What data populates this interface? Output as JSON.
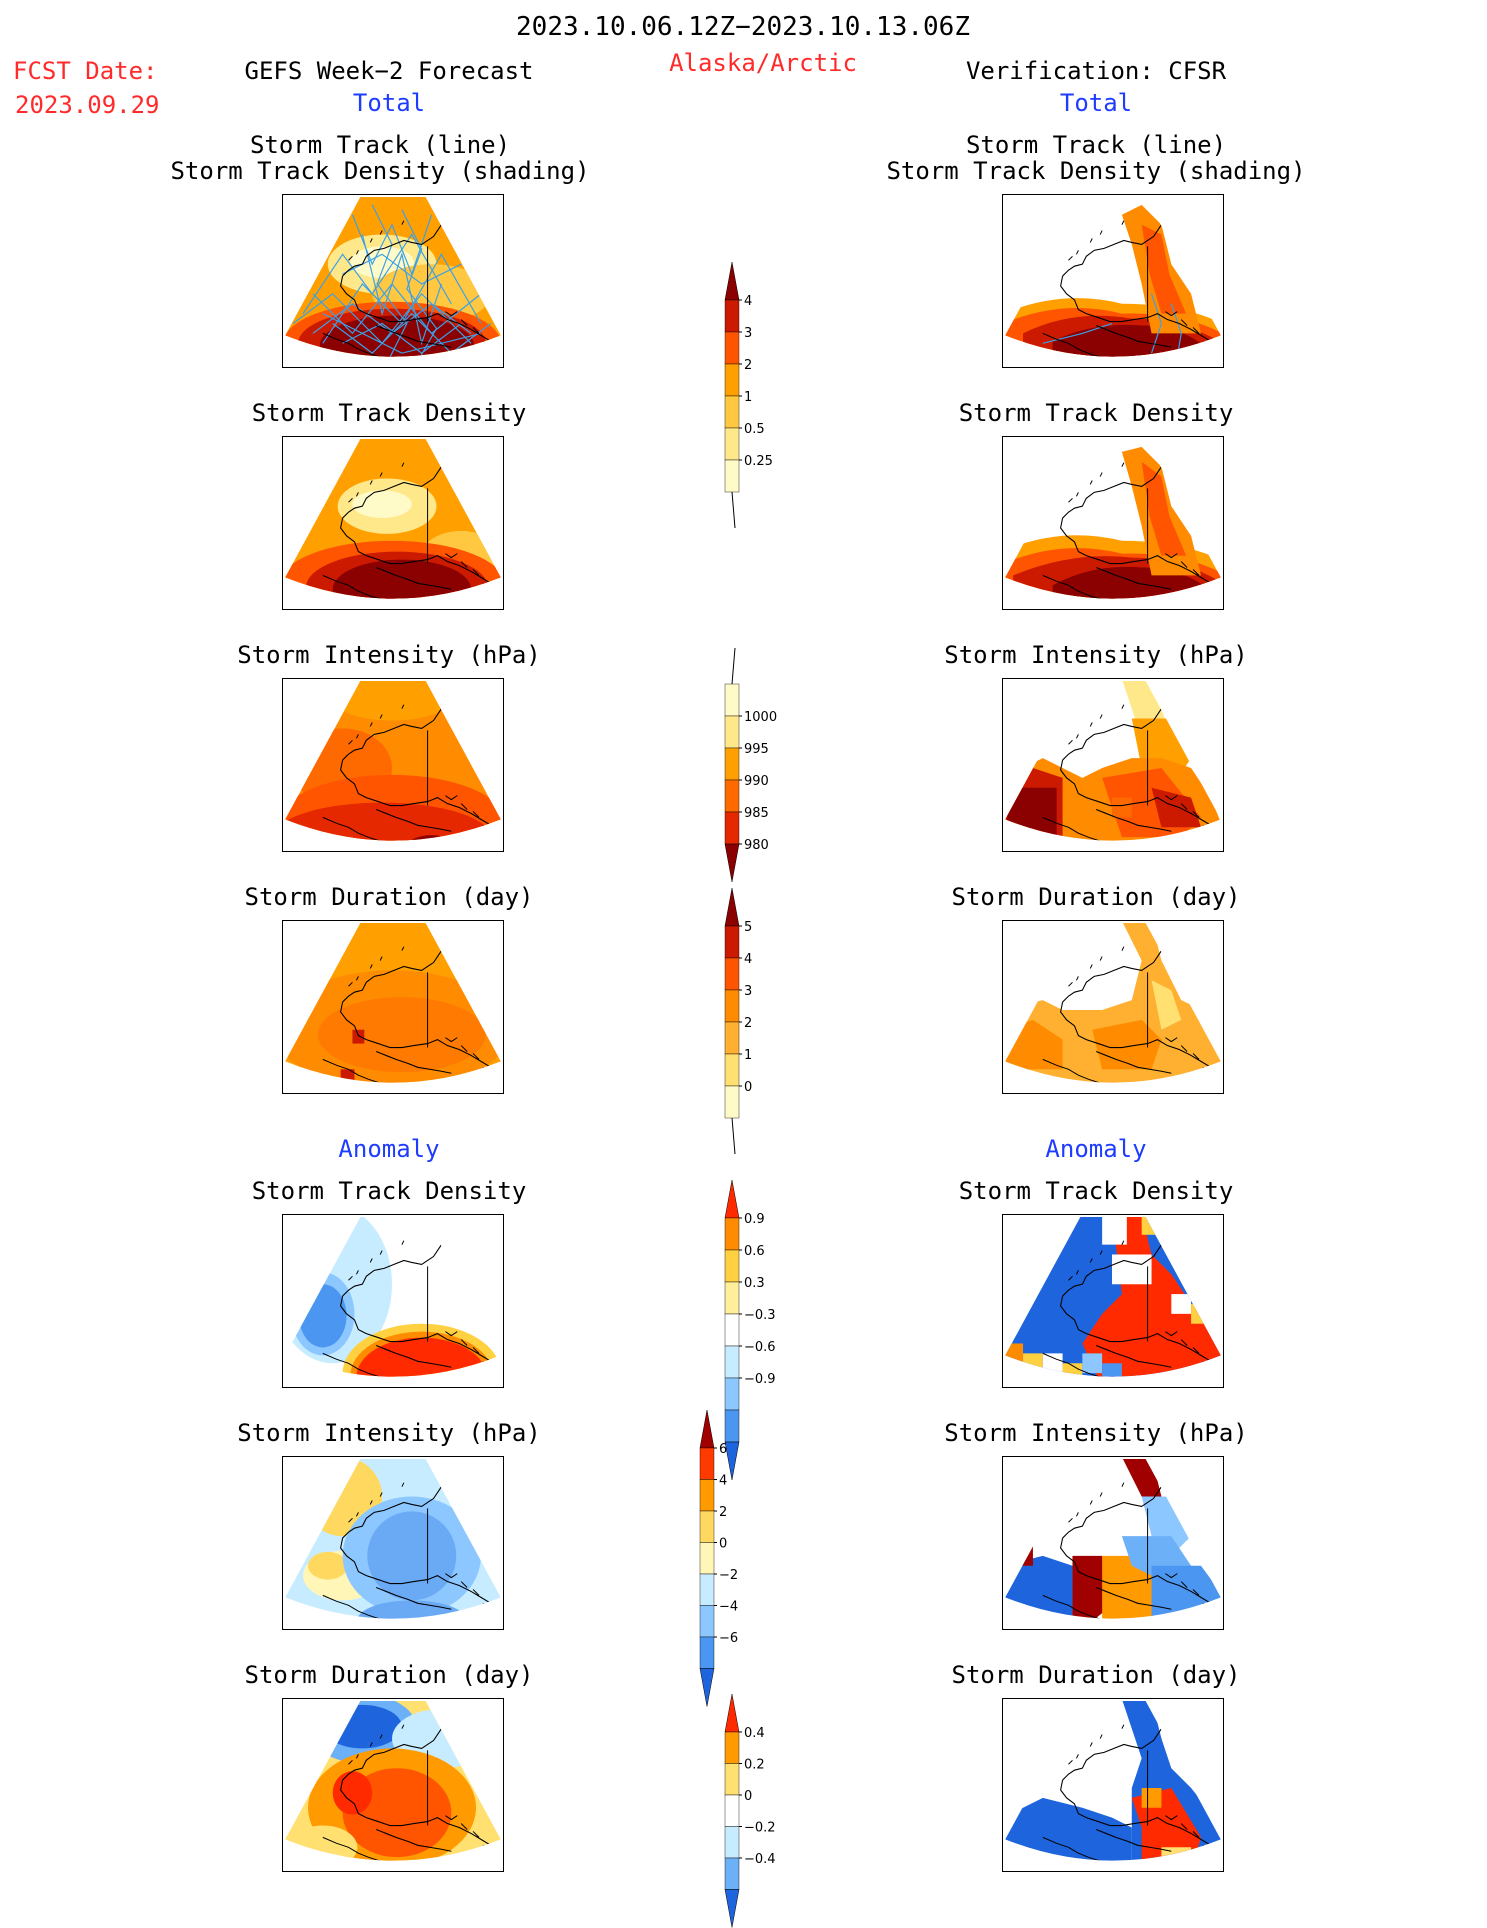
{
  "header": {
    "period": "2023.10.06.12Z−2023.10.13.06Z",
    "fcst_label": "FCST Date:",
    "fcst_date": "2023.09.29",
    "left_title": "GEFS Week−2 Forecast",
    "region": "Alaska/Arctic",
    "right_title": "Verification: CFSR"
  },
  "sections": {
    "total": "Total",
    "anomaly": "Anomaly"
  },
  "panels": {
    "track_line": "Storm Track (line)",
    "track_shading": "Storm Track Density (shading)",
    "density": "Storm Track Density",
    "intensity": "Storm Intensity (hPa)",
    "duration": "Storm Duration (day)"
  },
  "colorbars": {
    "density_total": {
      "ticks": [
        "4",
        "3",
        "2",
        "1",
        "0.5",
        "0.25"
      ],
      "colors": [
        "#8b0000",
        "#cc1a00",
        "#ff5500",
        "#ffa000",
        "#ffc840",
        "#ffe88a",
        "#fffbc8"
      ]
    },
    "intensity_total": {
      "ticks": [
        "1000",
        "995",
        "990",
        "985",
        "980"
      ],
      "colors": [
        "#fffbc8",
        "#ffe88a",
        "#ffa000",
        "#ff6a00",
        "#e62800",
        "#8b0000"
      ]
    },
    "duration_total": {
      "ticks": [
        "5",
        "4",
        "3",
        "2",
        "1",
        "0"
      ],
      "colors": [
        "#8b0000",
        "#cc1a00",
        "#ff5500",
        "#ff8c00",
        "#ffb030",
        "#ffe070",
        "#fffbc8"
      ]
    },
    "density_anom": {
      "ticks": [
        "0.9",
        "0.6",
        "0.3",
        "−0.3",
        "−0.6",
        "−0.9"
      ],
      "colors": [
        "#ff2a00",
        "#ff8c00",
        "#ffd040",
        "#ffef9a",
        "#ffffff",
        "#c8ecff",
        "#8cc8ff",
        "#4a96f0",
        "#1e64dc"
      ]
    },
    "intensity_anom": {
      "ticks": [
        "6",
        "4",
        "2",
        "0",
        "−2",
        "−4",
        "−6"
      ],
      "colors": [
        "#a00000",
        "#ff3a00",
        "#ff9a00",
        "#ffd860",
        "#fff6b8",
        "#c8ecff",
        "#8cc8ff",
        "#4a96f0",
        "#1e64dc"
      ]
    },
    "duration_anom": {
      "ticks": [
        "0.4",
        "0.2",
        "0",
        "−0.2",
        "−0.4"
      ],
      "colors": [
        "#ff2a00",
        "#ff9a00",
        "#ffe070",
        "#ffffff",
        "#c8ecff",
        "#6cb0f8",
        "#1e64dc"
      ]
    }
  }
}
